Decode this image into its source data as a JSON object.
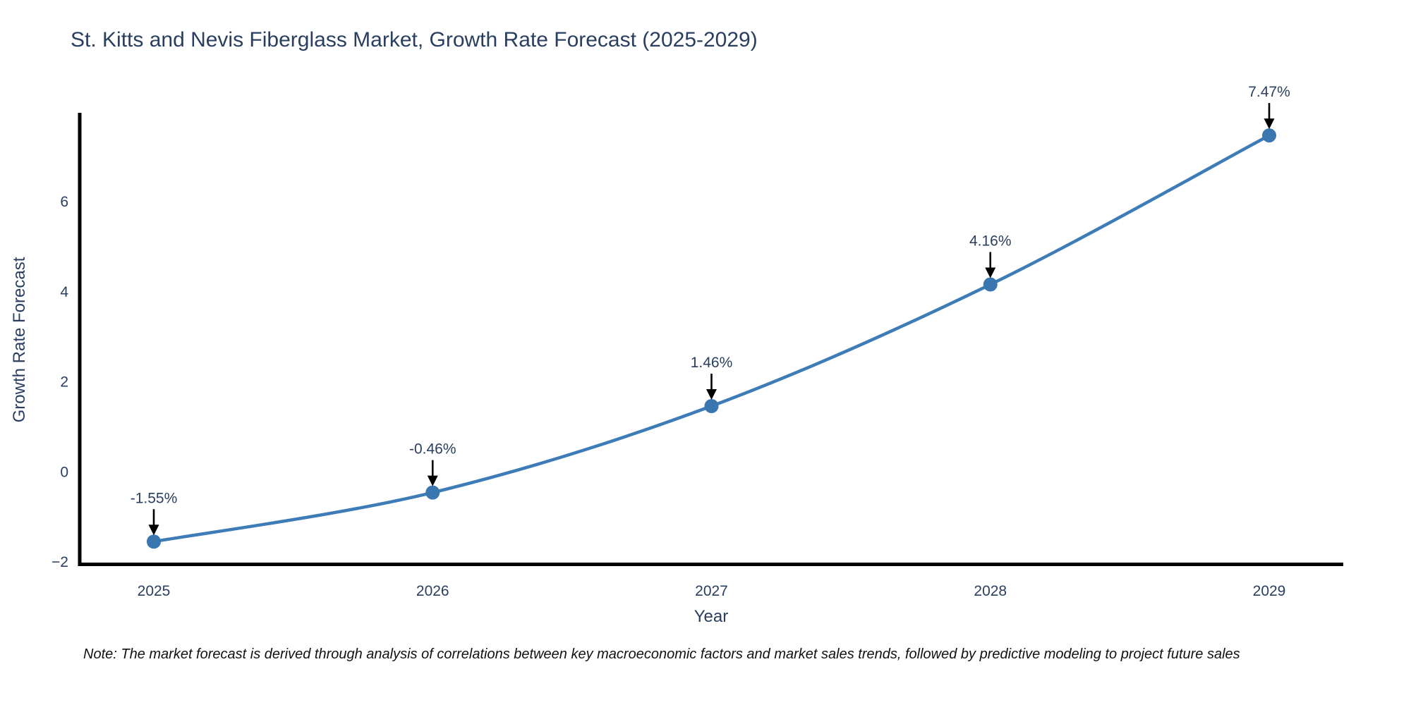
{
  "chart_data": {
    "type": "line",
    "title": "St. Kitts and Nevis Fiberglass Market, Growth Rate Forecast (2025-2029)",
    "xlabel": "Year",
    "ylabel": "Growth Rate Forecast",
    "categories": [
      "2025",
      "2026",
      "2027",
      "2028",
      "2029"
    ],
    "series": [
      {
        "name": "Growth Rate Forecast",
        "values": [
          -1.55,
          -0.46,
          1.46,
          4.16,
          7.47
        ]
      }
    ],
    "point_labels": [
      "-1.55%",
      "-0.46%",
      "1.46%",
      "4.16%",
      "7.47%"
    ],
    "ytick_values": [
      -2,
      0,
      2,
      4,
      6
    ],
    "ytick_labels": [
      "−2",
      "0",
      "2",
      "4",
      "6"
    ],
    "ylim": [
      -2.1,
      7.9
    ],
    "grid": false,
    "legend_position": "none",
    "line_shape": "spline",
    "line_color": "#3E7CB8",
    "marker_color": "#3A76B0",
    "annotation_arrow_color": "#000000",
    "axis_line_color": "#000000",
    "text_color": "#2a3f5f"
  },
  "note": {
    "text": "Note: The market forecast is derived through analysis of correlations between key macroeconomic factors and market sales trends, followed by predictive modeling to project future sales"
  }
}
